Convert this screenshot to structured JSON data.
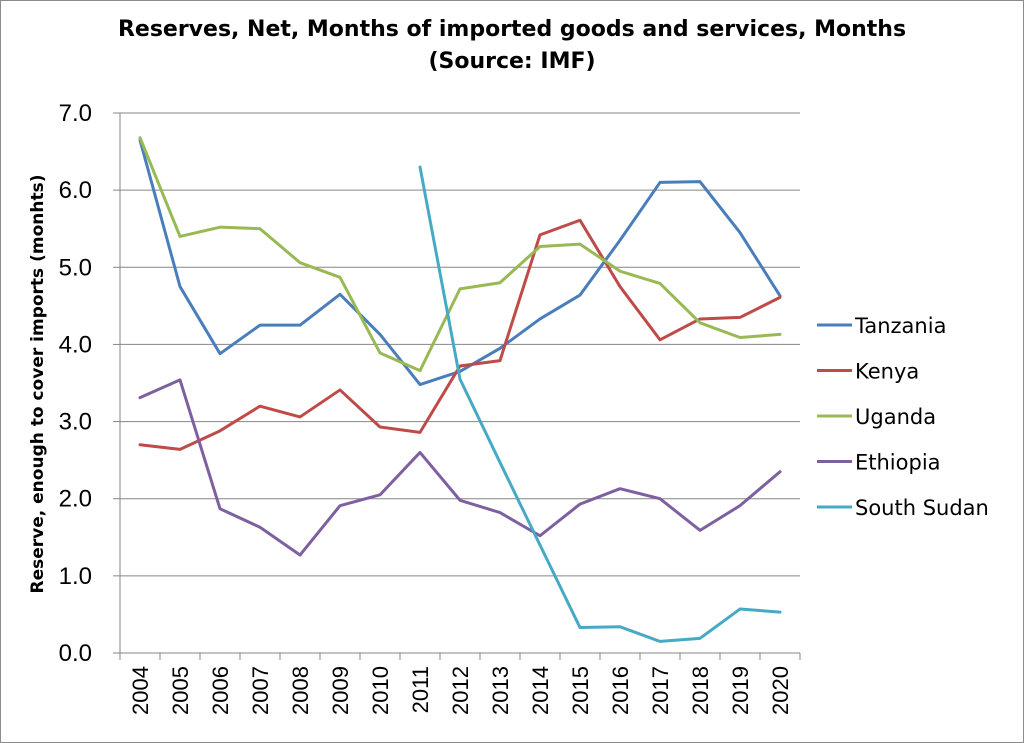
{
  "chart_data": {
    "type": "line",
    "title_line1": "Reserves, Net, Months of imported goods and services, Months",
    "title_line2": "(Source: IMF)",
    "xlabel": "",
    "ylabel": "Reserve, enough to cover imports (monhts)",
    "ylim": [
      0,
      7
    ],
    "yticks": [
      "0.0",
      "1.0",
      "2.0",
      "3.0",
      "4.0",
      "5.0",
      "6.0",
      "7.0"
    ],
    "categories": [
      "2004",
      "2005",
      "2006",
      "2007",
      "2008",
      "2009",
      "2010",
      "2011",
      "2012",
      "2013",
      "2014",
      "2015",
      "2016",
      "2017",
      "2018",
      "2019",
      "2020"
    ],
    "grid": "horizontal",
    "legend_position": "right",
    "series": [
      {
        "name": "Tanzania",
        "color": "#4a7ebb",
        "values": [
          6.65,
          4.75,
          3.88,
          4.25,
          4.25,
          4.65,
          4.13,
          3.48,
          3.65,
          3.95,
          4.33,
          4.64,
          5.35,
          6.1,
          6.11,
          5.45,
          4.63
        ]
      },
      {
        "name": "Kenya",
        "color": "#be4b48",
        "values": [
          2.7,
          2.64,
          2.88,
          3.2,
          3.06,
          3.41,
          2.93,
          2.86,
          3.72,
          3.79,
          5.42,
          5.61,
          4.75,
          4.06,
          4.33,
          4.35,
          4.61
        ]
      },
      {
        "name": "Uganda",
        "color": "#98b954",
        "values": [
          6.68,
          5.4,
          5.52,
          5.5,
          5.06,
          4.87,
          3.89,
          3.66,
          4.72,
          4.8,
          5.27,
          5.3,
          4.95,
          4.79,
          4.28,
          4.09,
          4.13
        ]
      },
      {
        "name": "Ethiopia",
        "color": "#7d60a0",
        "values": [
          3.31,
          3.54,
          1.87,
          1.63,
          1.27,
          1.91,
          2.05,
          2.6,
          1.98,
          1.82,
          1.52,
          1.93,
          2.13,
          2.0,
          1.59,
          1.91,
          2.35
        ]
      },
      {
        "name": "South Sudan",
        "color": "#46aac5",
        "values": [
          null,
          null,
          null,
          null,
          null,
          null,
          null,
          6.3,
          3.55,
          2.47,
          1.4,
          0.33,
          0.34,
          0.15,
          0.19,
          0.57,
          0.53
        ]
      }
    ]
  }
}
